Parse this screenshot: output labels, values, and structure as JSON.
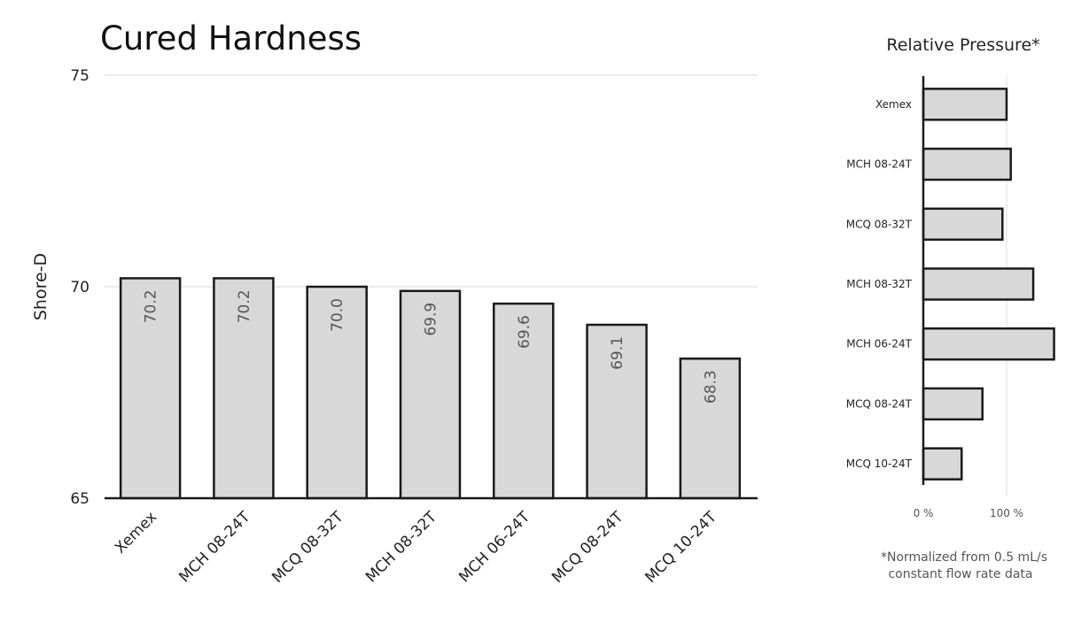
{
  "chart_data": [
    {
      "type": "bar",
      "title": "Cured Hardness",
      "ylabel": "Shore-D",
      "xlabel": "",
      "ylim": [
        65,
        75
      ],
      "yticks": [
        65,
        70,
        75
      ],
      "grid": true,
      "value_labels": [
        "70.2",
        "70.2",
        "70.0",
        "69.9",
        "69.6",
        "69.1",
        "68.3"
      ],
      "categories": [
        "Xemex",
        "MCH 08-24T",
        "MCQ 08-32T",
        "MCH 08-32T",
        "MCH 06-24T",
        "MCQ 08-24T",
        "MCQ 10-24T"
      ],
      "values": [
        70.2,
        70.2,
        70.0,
        69.9,
        69.6,
        69.1,
        68.3
      ],
      "bar_color": "#d9d8d9",
      "edge_color": "#1a1a1a"
    },
    {
      "type": "bar",
      "orientation": "horizontal",
      "title": "Relative Pressure*",
      "categories": [
        "Xemex",
        "MCH 08-24T",
        "MCQ 08-32T",
        "MCH 08-32T",
        "MCH 06-24T",
        "MCQ 08-24T",
        "MCQ 10-24T"
      ],
      "values": [
        100,
        105,
        95,
        132,
        157,
        71,
        46
      ],
      "unit": "%",
      "xlim": [
        0,
        170
      ],
      "xticks": [
        0,
        100
      ],
      "xtick_labels": [
        "0 %",
        "100 %"
      ],
      "grid": true,
      "footnote": [
        "*Normalized from 0.5 mL/s",
        "constant flow rate data"
      ],
      "bar_color": "#d9d8d9",
      "edge_color": "#1a1a1a"
    }
  ]
}
